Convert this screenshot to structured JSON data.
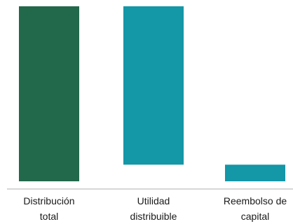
{
  "chart_data": {
    "type": "bar",
    "categories": [
      [
        "Distribución",
        "total"
      ],
      [
        "Utilidad",
        "distribuible"
      ],
      [
        "Reembolso de",
        "capital"
      ]
    ],
    "values": [
      100,
      90.5,
      9.5
    ],
    "colors": [
      "#22684B",
      "#1497A7",
      "#1497A7"
    ],
    "title": "",
    "xlabel": "",
    "ylabel": "",
    "ylim": [
      0,
      100
    ],
    "grid": false,
    "legend": "none"
  }
}
